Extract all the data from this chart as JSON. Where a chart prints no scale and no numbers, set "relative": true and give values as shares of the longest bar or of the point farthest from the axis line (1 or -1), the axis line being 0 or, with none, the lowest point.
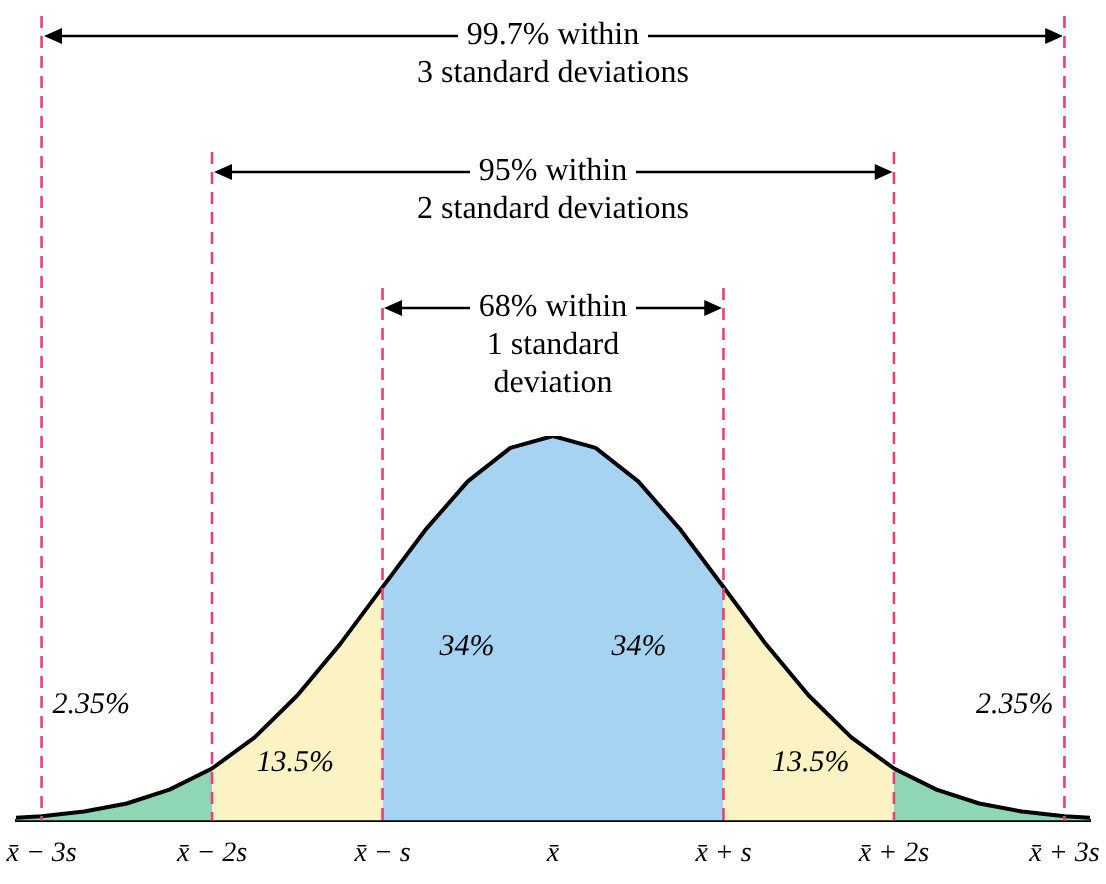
{
  "chart_data": {
    "type": "area",
    "relative": true,
    "tick_labels": "x",
    "grid": false,
    "legend": false,
    "marker": "none",
    "xlim": [
      -3.15,
      3.15
    ],
    "xticks": [
      {
        "value": -3,
        "label": "x̄ − 3s"
      },
      {
        "value": -2,
        "label": "x̄ − 2s"
      },
      {
        "value": -1,
        "label": "x̄ − s"
      },
      {
        "value": 0,
        "label": "x̄"
      },
      {
        "value": 1,
        "label": "x̄ + s"
      },
      {
        "value": 2,
        "label": "x̄ + 2s"
      },
      {
        "value": 3,
        "label": "x̄ + 3s"
      }
    ],
    "series": [
      {
        "type": "line",
        "color": "#000000",
        "x": [
          -3.15,
          -3,
          -2.75,
          -2.5,
          -2.25,
          -2,
          -1.75,
          -1.5,
          -1.25,
          -1,
          -0.75,
          -0.5,
          -0.25,
          0,
          0.25,
          0.5,
          0.75,
          1,
          1.25,
          1.5,
          1.75,
          2,
          2.25,
          2.5,
          2.75,
          3,
          3.15
        ],
        "values": [
          0.007,
          0.011,
          0.023,
          0.044,
          0.08,
          0.135,
          0.216,
          0.325,
          0.458,
          0.607,
          0.755,
          0.882,
          0.969,
          1,
          0.969,
          0.882,
          0.755,
          0.607,
          0.458,
          0.325,
          0.216,
          0.135,
          0.08,
          0.044,
          0.023,
          0.011,
          0.007
        ]
      },
      {
        "type": "area",
        "color": "#8fd6b4",
        "x": [
          -3.15,
          -3,
          -2.75,
          -2.5,
          -2.25,
          -2
        ],
        "values": [
          0.007,
          0.011,
          0.023,
          0.044,
          0.08,
          0.135
        ]
      },
      {
        "type": "area",
        "color": "#fbf3c4",
        "x": [
          -2,
          -1.75,
          -1.5,
          -1.25,
          -1
        ],
        "values": [
          0.135,
          0.216,
          0.325,
          0.458,
          0.607
        ]
      },
      {
        "type": "area",
        "color": "#a6d3f2",
        "x": [
          -1,
          -0.75,
          -0.5,
          -0.25,
          0,
          0.25,
          0.5,
          0.75,
          1
        ],
        "values": [
          0.607,
          0.755,
          0.882,
          0.969,
          1,
          0.969,
          0.882,
          0.755,
          0.607
        ]
      },
      {
        "type": "area",
        "color": "#fbf3c4",
        "x": [
          1,
          1.25,
          1.5,
          1.75,
          2
        ],
        "values": [
          0.607,
          0.458,
          0.325,
          0.216,
          0.135
        ]
      },
      {
        "type": "area",
        "color": "#8fd6b4",
        "x": [
          2,
          2.25,
          2.5,
          2.75,
          3,
          3.15
        ],
        "values": [
          0.135,
          0.08,
          0.044,
          0.023,
          0.011,
          0.007
        ]
      }
    ],
    "ref_lines": [
      {
        "axis": "x",
        "value": -3,
        "color": "#e8407a",
        "line_style": "dashed"
      },
      {
        "axis": "x",
        "value": 3,
        "color": "#e8407a",
        "line_style": "dashed"
      },
      {
        "axis": "x",
        "value": -2,
        "color": "#e8407a",
        "line_style": "dashed"
      },
      {
        "axis": "x",
        "value": 2,
        "color": "#e8407a",
        "line_style": "dashed"
      },
      {
        "axis": "x",
        "value": -1,
        "color": "#e8407a",
        "line_style": "dashed"
      },
      {
        "axis": "x",
        "value": 1,
        "color": "#e8407a",
        "line_style": "dashed"
      }
    ],
    "annotations": [
      "99.7% within\n3 standard deviations",
      "95% within\n2 standard deviations",
      "68% within\n1 standard\ndeviation",
      "34%",
      "34%",
      "13.5%",
      "13.5%",
      "2.35%",
      "2.35%"
    ]
  }
}
